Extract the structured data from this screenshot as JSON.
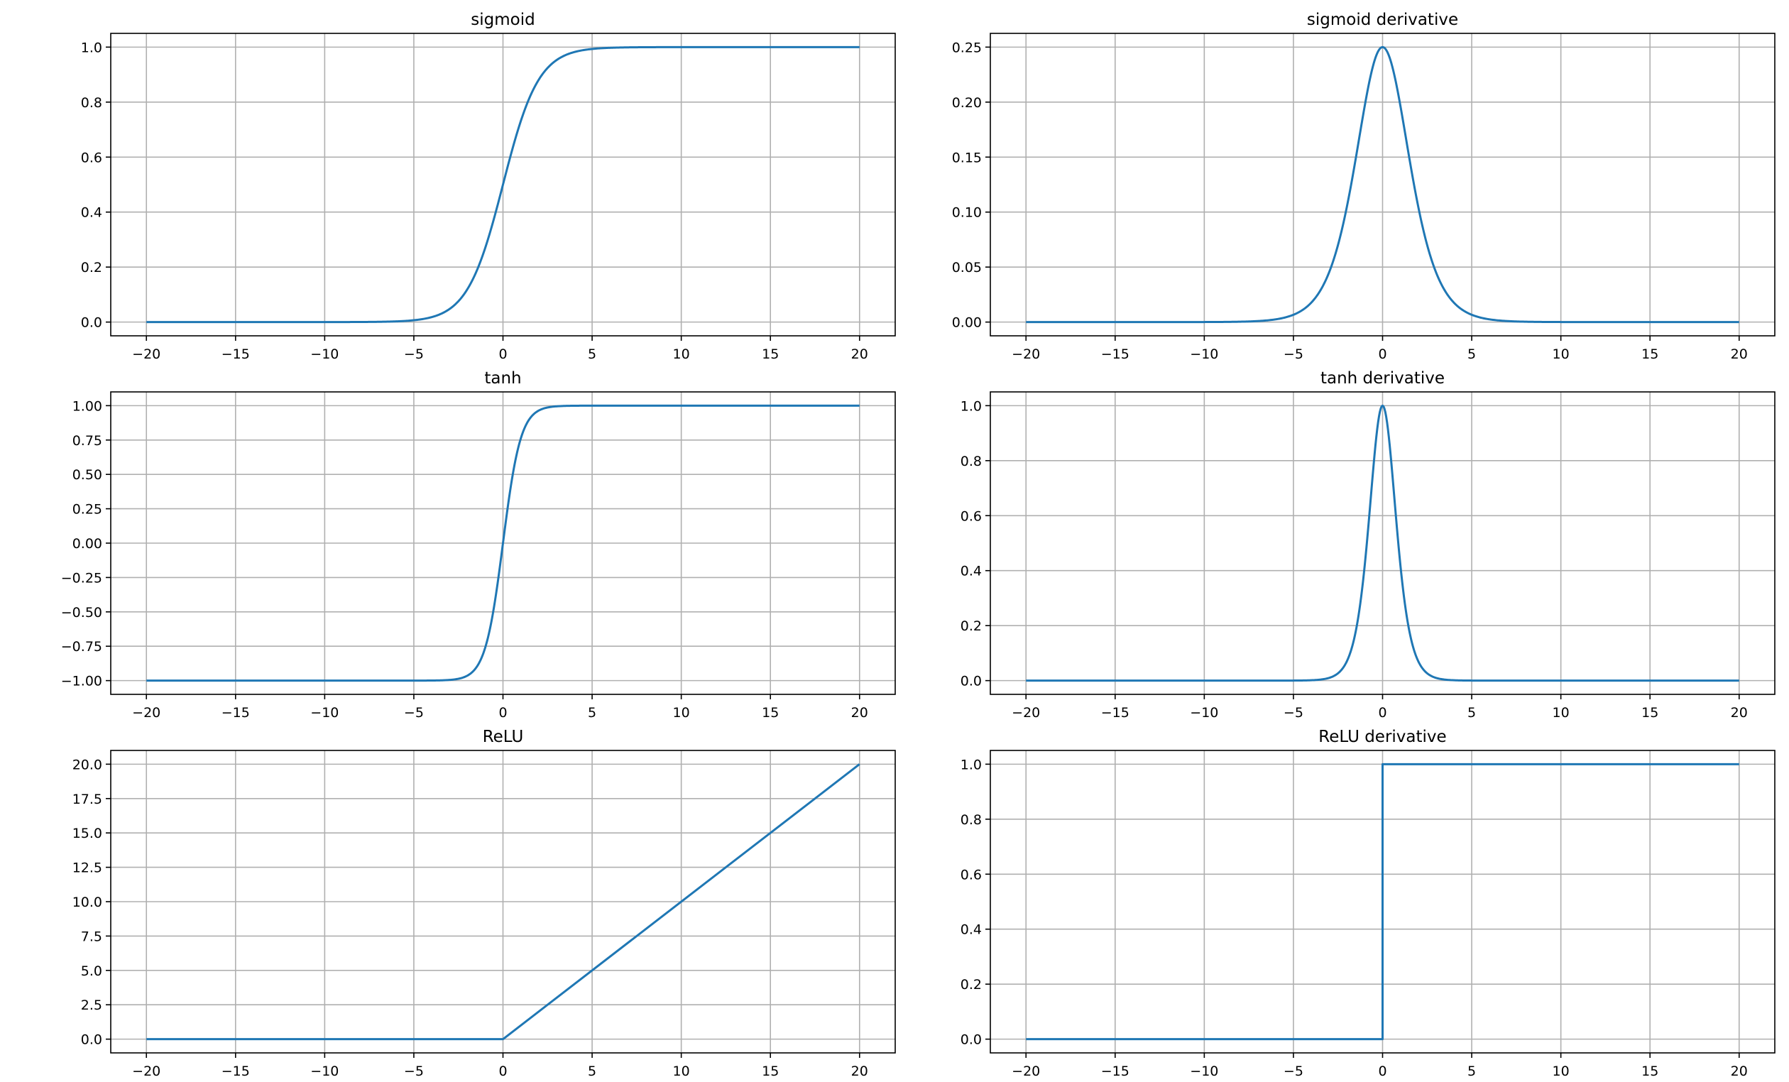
{
  "figure": {
    "background": "#ffffff",
    "line_color": "#1f77b4",
    "grid_color": "#b0b0b0"
  },
  "chart_data": [
    {
      "type": "line",
      "title": "sigmoid",
      "function": "sigmoid",
      "xlim": [
        -22,
        22
      ],
      "ylim": [
        -0.05,
        1.05
      ],
      "xticks": [
        -20,
        -15,
        -10,
        -5,
        0,
        5,
        10,
        15,
        20
      ],
      "xtick_labels": [
        "−20",
        "−15",
        "−10",
        "−5",
        "0",
        "5",
        "10",
        "15",
        "20"
      ],
      "yticks": [
        0.0,
        0.2,
        0.4,
        0.6,
        0.8,
        1.0
      ],
      "ytick_labels": [
        "0.0",
        "0.2",
        "0.4",
        "0.6",
        "0.8",
        "1.0"
      ],
      "grid": true,
      "series": [
        {
          "x": [
            -20,
            -10,
            -5,
            -4,
            -3,
            -2,
            -1,
            0,
            1,
            2,
            3,
            4,
            5,
            10,
            20
          ],
          "y": [
            0.0,
            5e-05,
            0.0067,
            0.018,
            0.047,
            0.119,
            0.269,
            0.5,
            0.731,
            0.881,
            0.953,
            0.982,
            0.9933,
            0.99995,
            1.0
          ]
        }
      ]
    },
    {
      "type": "line",
      "title": "sigmoid derivative",
      "function": "sigmoid_derivative",
      "xlim": [
        -22,
        22
      ],
      "ylim": [
        -0.0125,
        0.2625
      ],
      "xticks": [
        -20,
        -15,
        -10,
        -5,
        0,
        5,
        10,
        15,
        20
      ],
      "xtick_labels": [
        "−20",
        "−15",
        "−10",
        "−5",
        "0",
        "5",
        "10",
        "15",
        "20"
      ],
      "yticks": [
        0.0,
        0.05,
        0.1,
        0.15,
        0.2,
        0.25
      ],
      "ytick_labels": [
        "0.00",
        "0.05",
        "0.10",
        "0.15",
        "0.20",
        "0.25"
      ],
      "grid": true,
      "series": [
        {
          "x": [
            -20,
            -10,
            -5,
            -4,
            -3,
            -2,
            -1,
            0,
            1,
            2,
            3,
            4,
            5,
            10,
            20
          ],
          "y": [
            0.0,
            5e-05,
            0.0066,
            0.0177,
            0.0452,
            0.105,
            0.1966,
            0.25,
            0.1966,
            0.105,
            0.0452,
            0.0177,
            0.0066,
            5e-05,
            0.0
          ]
        }
      ]
    },
    {
      "type": "line",
      "title": "tanh",
      "function": "tanh",
      "xlim": [
        -22,
        22
      ],
      "ylim": [
        -1.1,
        1.1
      ],
      "xticks": [
        -20,
        -15,
        -10,
        -5,
        0,
        5,
        10,
        15,
        20
      ],
      "xtick_labels": [
        "−20",
        "−15",
        "−10",
        "−5",
        "0",
        "5",
        "10",
        "15",
        "20"
      ],
      "yticks": [
        -1.0,
        -0.75,
        -0.5,
        -0.25,
        0.0,
        0.25,
        0.5,
        0.75,
        1.0
      ],
      "ytick_labels": [
        "−1.00",
        "−0.75",
        "−0.50",
        "−0.25",
        "0.00",
        "0.25",
        "0.50",
        "0.75",
        "1.00"
      ],
      "grid": true,
      "series": [
        {
          "x": [
            -20,
            -5,
            -3,
            -2,
            -1,
            -0.5,
            0,
            0.5,
            1,
            2,
            3,
            5,
            20
          ],
          "y": [
            -1.0,
            -0.9999,
            -0.995,
            -0.964,
            -0.762,
            -0.462,
            0.0,
            0.462,
            0.762,
            0.964,
            0.995,
            0.9999,
            1.0
          ]
        }
      ]
    },
    {
      "type": "line",
      "title": "tanh derivative",
      "function": "tanh_derivative",
      "xlim": [
        -22,
        22
      ],
      "ylim": [
        -0.05,
        1.05
      ],
      "xticks": [
        -20,
        -15,
        -10,
        -5,
        0,
        5,
        10,
        15,
        20
      ],
      "xtick_labels": [
        "−20",
        "−15",
        "−10",
        "−5",
        "0",
        "5",
        "10",
        "15",
        "20"
      ],
      "yticks": [
        0.0,
        0.2,
        0.4,
        0.6,
        0.8,
        1.0
      ],
      "ytick_labels": [
        "0.0",
        "0.2",
        "0.4",
        "0.6",
        "0.8",
        "1.0"
      ],
      "grid": true,
      "series": [
        {
          "x": [
            -20,
            -5,
            -3,
            -2,
            -1,
            -0.5,
            0,
            0.5,
            1,
            2,
            3,
            5,
            20
          ],
          "y": [
            0.0,
            0.0002,
            0.0099,
            0.0707,
            0.42,
            0.7864,
            1.0,
            0.7864,
            0.42,
            0.0707,
            0.0099,
            0.0002,
            0.0
          ]
        }
      ]
    },
    {
      "type": "line",
      "title": "ReLU",
      "function": "relu",
      "xlim": [
        -22,
        22
      ],
      "ylim": [
        -1.0,
        21.0
      ],
      "xticks": [
        -20,
        -15,
        -10,
        -5,
        0,
        5,
        10,
        15,
        20
      ],
      "xtick_labels": [
        "−20",
        "−15",
        "−10",
        "−5",
        "0",
        "5",
        "10",
        "15",
        "20"
      ],
      "yticks": [
        0.0,
        2.5,
        5.0,
        7.5,
        10.0,
        12.5,
        15.0,
        17.5,
        20.0
      ],
      "ytick_labels": [
        "0.0",
        "2.5",
        "5.0",
        "7.5",
        "10.0",
        "12.5",
        "15.0",
        "17.5",
        "20.0"
      ],
      "grid": true,
      "series": [
        {
          "x": [
            -20,
            0,
            20
          ],
          "y": [
            0,
            0,
            20
          ]
        }
      ]
    },
    {
      "type": "line",
      "title": "ReLU derivative",
      "function": "relu_derivative",
      "xlim": [
        -22,
        22
      ],
      "ylim": [
        -0.05,
        1.05
      ],
      "xticks": [
        -20,
        -15,
        -10,
        -5,
        0,
        5,
        10,
        15,
        20
      ],
      "xtick_labels": [
        "−20",
        "−15",
        "−10",
        "−5",
        "0",
        "5",
        "10",
        "15",
        "20"
      ],
      "yticks": [
        0.0,
        0.2,
        0.4,
        0.6,
        0.8,
        1.0
      ],
      "ytick_labels": [
        "0.0",
        "0.2",
        "0.4",
        "0.6",
        "0.8",
        "1.0"
      ],
      "grid": true,
      "series": [
        {
          "x": [
            -20,
            0,
            0,
            20
          ],
          "y": [
            0,
            0,
            1,
            1
          ]
        }
      ]
    }
  ]
}
